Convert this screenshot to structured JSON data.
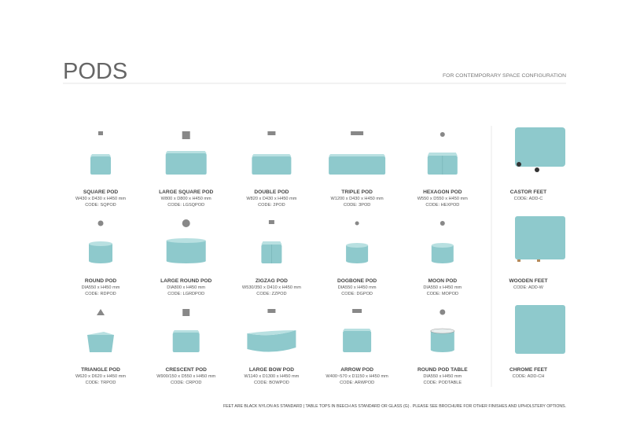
{
  "header": {
    "title": "PODS",
    "subtitle": "FOR CONTEMPORARY SPACE CONFIGURATION"
  },
  "products": [
    [
      {
        "name": "SQUARE POD",
        "dims": "W430 x D430 x H450 mm",
        "code": "CODE: SQPOD"
      },
      {
        "name": "LARGE SQUARE POD",
        "dims": "W800 x D800 x H450 mm",
        "code": "CODE: LGSQPOD"
      },
      {
        "name": "DOUBLE POD",
        "dims": "W820 x D430 x H450 mm",
        "code": "CODE: 2POD"
      },
      {
        "name": "TRIPLE POD",
        "dims": "W1200 x D430 x H450 mm",
        "code": "CODE: 3POD"
      },
      {
        "name": "HEXAGON POD",
        "dims": "W550 x D550 x H450 mm",
        "code": "CODE: HEXPOD"
      }
    ],
    [
      {
        "name": "ROUND POD",
        "dims": "DIA550 x H450 mm",
        "code": "CODE: RDPOD"
      },
      {
        "name": "LARGE ROUND POD",
        "dims": "DIA800 x H450 mm",
        "code": "CODE: LGRDPOD"
      },
      {
        "name": "ZIGZAG POD",
        "dims": "W530/350 x D410 x H450 mm",
        "code": "CODE: ZZPOD"
      },
      {
        "name": "DOGBONE POD",
        "dims": "DIA550 x H450 mm",
        "code": "CODE: DGPOD"
      },
      {
        "name": "MOON POD",
        "dims": "DIA550 x H450 mm",
        "code": "CODE: MOPOD"
      }
    ],
    [
      {
        "name": "TRIANGLE POD",
        "dims": "W620 x D620 x H450 mm",
        "code": "CODE: TRPOD"
      },
      {
        "name": "CRESCENT POD",
        "dims": "W900/150 x D550 x H450 mm",
        "code": "CODE: CRPOD"
      },
      {
        "name": "LARGE BOW POD",
        "dims": "W1140 x D1300 x H450 mm",
        "code": "CODE: BOWPOD"
      },
      {
        "name": "ARROW POD",
        "dims": "W400~570 x D1150 x H450 mm",
        "code": "CODE: ARWPOD"
      },
      {
        "name": "ROUND POD TABLE",
        "dims": "DIA550 x H450 mm",
        "code": "CODE: PODTABLE"
      }
    ]
  ],
  "feet": [
    {
      "name": "CASTOR FEET",
      "code": "CODE: ADD-C"
    },
    {
      "name": "WOODEN FEET",
      "code": "CODE: ADD-W"
    },
    {
      "name": "CHROME FEET",
      "code": "CODE: ADD-CH"
    }
  ],
  "footer": "FEET ARE BLACK NYLON AS STANDARD | TABLE TOPS IN BEECH AS STANDARD OR GLASS (G) . PLEASE SEE BROCHURE FOR OTHER FINISHES AND UPHOLSTERY OPTIONS."
}
